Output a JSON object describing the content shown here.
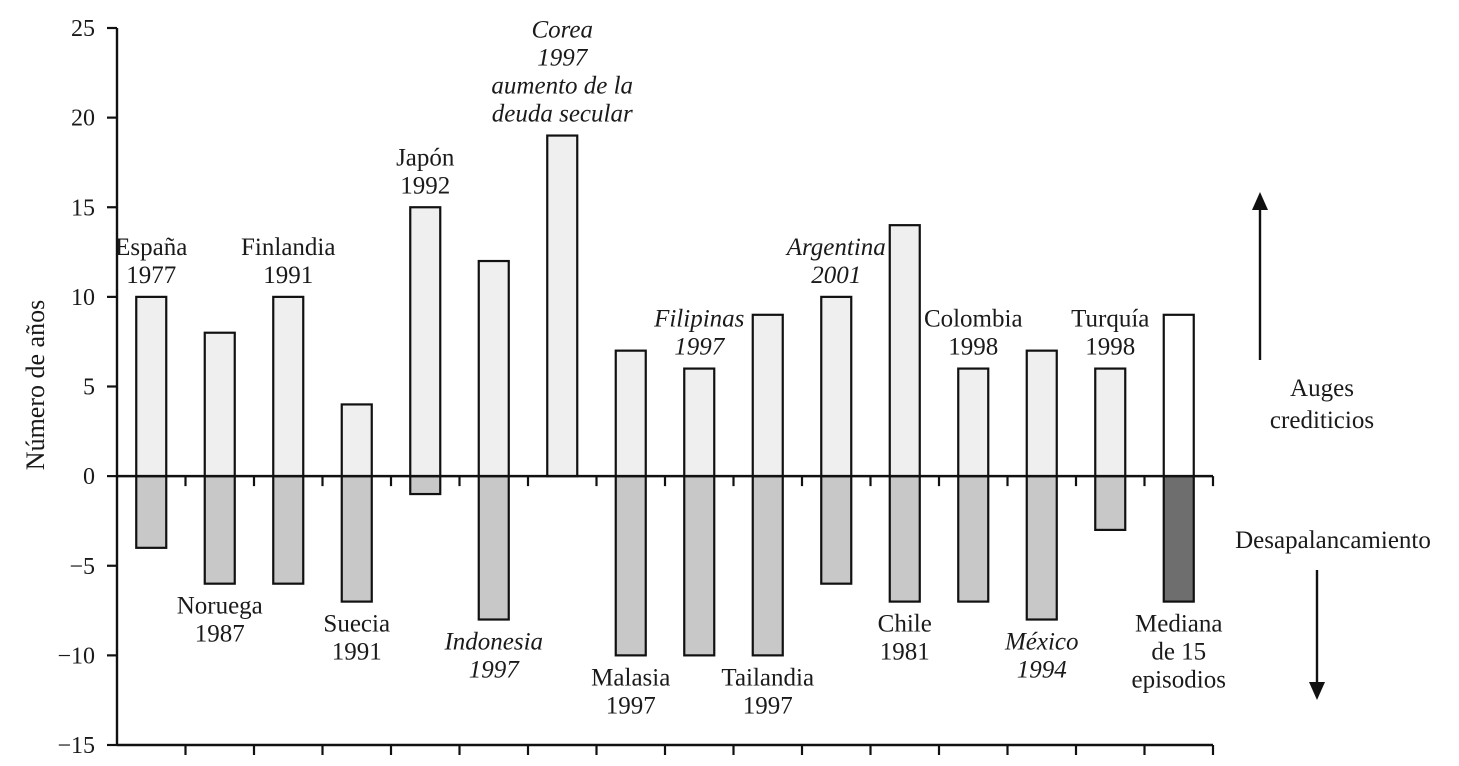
{
  "chart_data": {
    "type": "bar",
    "ylabel": "Número de años",
    "ylim": [
      -15,
      25
    ],
    "yticks": [
      25,
      20,
      15,
      10,
      5,
      0,
      -5,
      -10,
      -15
    ],
    "ytick_labels": [
      "25",
      "20",
      "15",
      "10",
      "5",
      "0",
      "−5",
      "−10",
      "−15"
    ],
    "categories": [
      {
        "lines": [
          "España",
          "1977"
        ],
        "italic": false,
        "position": "above"
      },
      {
        "lines": [
          "Noruega",
          "1987"
        ],
        "italic": false,
        "position": "below"
      },
      {
        "lines": [
          "Finlandia",
          "1991"
        ],
        "italic": false,
        "position": "above"
      },
      {
        "lines": [
          "Suecia",
          "1991"
        ],
        "italic": false,
        "position": "below"
      },
      {
        "lines": [
          "Japón",
          "1992"
        ],
        "italic": false,
        "position": "above"
      },
      {
        "lines": [
          "Indonesia",
          "1997"
        ],
        "italic": true,
        "position": "below"
      },
      {
        "lines": [
          "Corea",
          "1997",
          "aumento de la",
          "deuda secular"
        ],
        "italic": true,
        "position": "above"
      },
      {
        "lines": [
          "Malasia",
          "1997"
        ],
        "italic": false,
        "position": "below"
      },
      {
        "lines": [
          "Filipinas",
          "1997"
        ],
        "italic": true,
        "position": "above"
      },
      {
        "lines": [
          "Tailandia",
          "1997"
        ],
        "italic": false,
        "position": "below"
      },
      {
        "lines": [
          "Argentina",
          "2001"
        ],
        "italic": true,
        "position": "above"
      },
      {
        "lines": [
          "Chile",
          "1981"
        ],
        "italic": false,
        "position": "below"
      },
      {
        "lines": [
          "Colombia",
          "1998"
        ],
        "italic": false,
        "position": "above"
      },
      {
        "lines": [
          "México",
          "1994"
        ],
        "italic": true,
        "position": "below"
      },
      {
        "lines": [
          "Turquía",
          "1998"
        ],
        "italic": false,
        "position": "above"
      },
      {
        "lines": [
          "Mediana",
          "de 15",
          "episodios"
        ],
        "italic": false,
        "position": "below"
      }
    ],
    "series": [
      {
        "name": "Auges crediticios",
        "color": "#efefef",
        "highlight_color": "#ffffff",
        "values": [
          10,
          8,
          10,
          4,
          15,
          12,
          19,
          7,
          6,
          9,
          10,
          14,
          6,
          7,
          6,
          9
        ]
      },
      {
        "name": "Desapalancamiento",
        "color": "#c8c8c8",
        "highlight_color": "#6e6e6e",
        "values": [
          -4,
          -6,
          -6,
          -7,
          -1,
          -8,
          0,
          -10,
          -10,
          -10,
          -6,
          -7,
          -7,
          -8,
          -3,
          -7
        ]
      }
    ],
    "side_labels": {
      "up": [
        "Auges",
        "crediticios"
      ],
      "down": [
        "Desapalancamiento"
      ]
    }
  }
}
